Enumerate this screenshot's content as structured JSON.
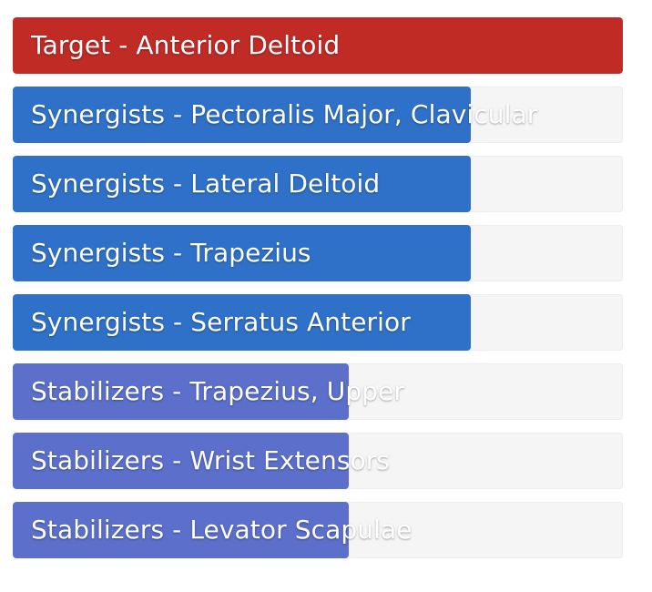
{
  "muscles": [
    {
      "label": "Target - Anterior Deltoid",
      "role": "target",
      "level_percent": 100,
      "color": "#c12b26"
    },
    {
      "label": "Synergists - Pectoralis Major, Clavicular",
      "role": "synergist",
      "level_percent": 75,
      "color": "#2f71c8"
    },
    {
      "label": "Synergists - Lateral Deltoid",
      "role": "synergist",
      "level_percent": 75,
      "color": "#2f71c8"
    },
    {
      "label": "Synergists - Trapezius",
      "role": "synergist",
      "level_percent": 75,
      "color": "#2f71c8"
    },
    {
      "label": "Synergists - Serratus Anterior",
      "role": "synergist",
      "level_percent": 75,
      "color": "#2f71c8"
    },
    {
      "label": "Stabilizers - Trapezius, Upper",
      "role": "stabilizer",
      "level_percent": 55,
      "color": "#5b6fcb"
    },
    {
      "label": "Stabilizers - Wrist Extensors",
      "role": "stabilizer",
      "level_percent": 55,
      "color": "#5b6fcb"
    },
    {
      "label": "Stabilizers - Levator Scapulae",
      "role": "stabilizer",
      "level_percent": 55,
      "color": "#5b6fcb"
    }
  ]
}
